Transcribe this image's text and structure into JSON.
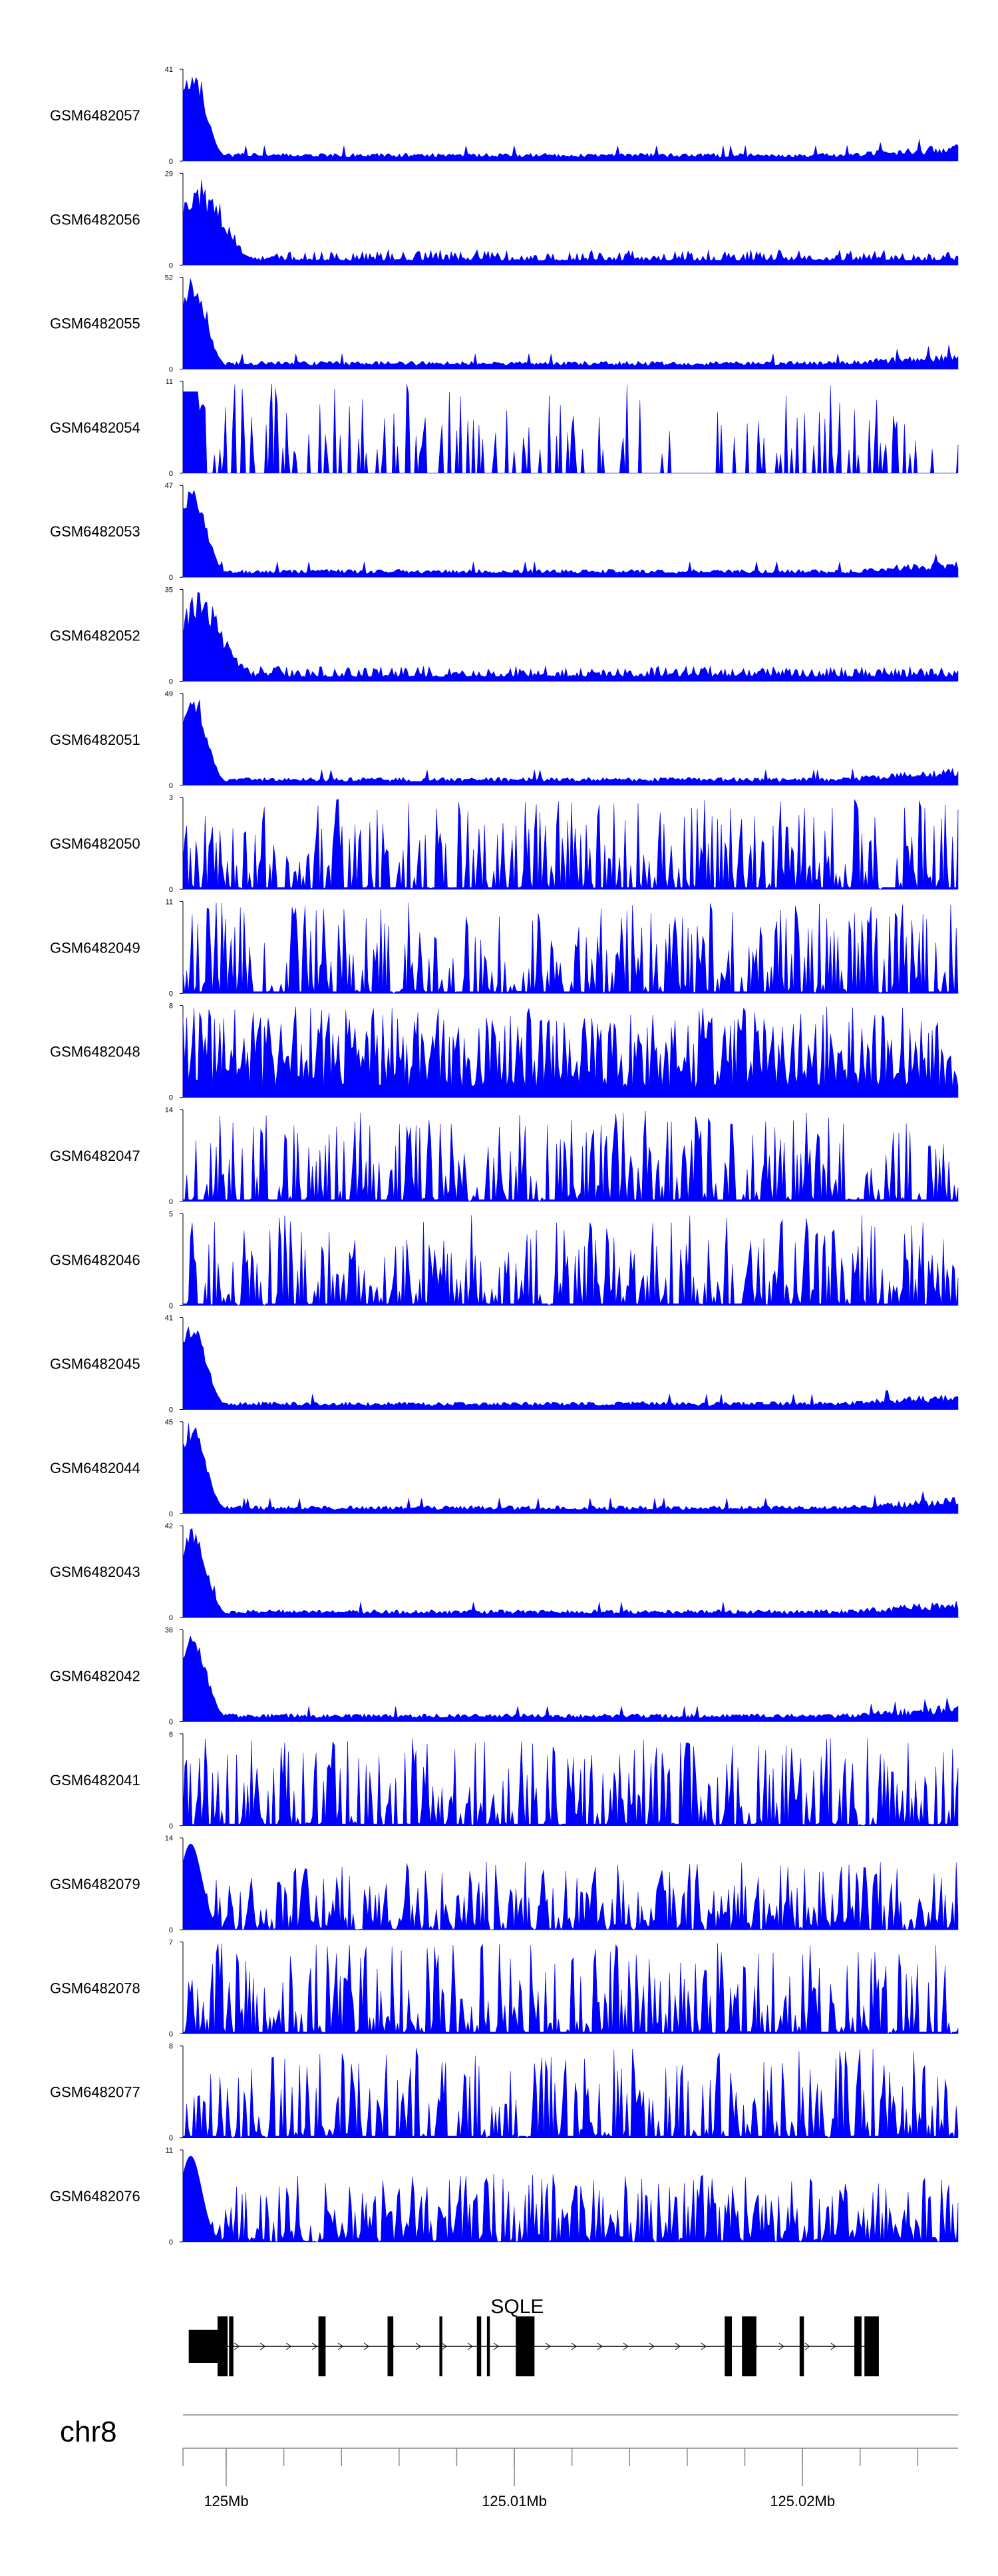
{
  "chart_data": {
    "type": "area",
    "fill_color": "#0000ff",
    "track_label_color": "#000000",
    "tracks": [
      {
        "name": "GSM6482057",
        "ymax": "41",
        "profile": "early",
        "seed": 11
      },
      {
        "name": "GSM6482056",
        "ymax": "29",
        "profile": "early-broad",
        "seed": 12
      },
      {
        "name": "GSM6482055",
        "ymax": "52",
        "profile": "early",
        "seed": 13
      },
      {
        "name": "GSM6482054",
        "ymax": "11",
        "profile": "sparse",
        "seed": 14
      },
      {
        "name": "GSM6482053",
        "ymax": "47",
        "profile": "early",
        "seed": 15
      },
      {
        "name": "GSM6482052",
        "ymax": "35",
        "profile": "early-broad",
        "seed": 16
      },
      {
        "name": "GSM6482051",
        "ymax": "49",
        "profile": "early",
        "seed": 17
      },
      {
        "name": "GSM6482050",
        "ymax": "3",
        "profile": "noise",
        "seed": 18
      },
      {
        "name": "GSM6482049",
        "ymax": "11",
        "profile": "noise",
        "seed": 19
      },
      {
        "name": "GSM6482048",
        "ymax": "8",
        "profile": "noise-dense",
        "seed": 20
      },
      {
        "name": "GSM6482047",
        "ymax": "14",
        "profile": "noise",
        "seed": 21
      },
      {
        "name": "GSM6482046",
        "ymax": "5",
        "profile": "noise",
        "seed": 22
      },
      {
        "name": "GSM6482045",
        "ymax": "41",
        "profile": "early",
        "seed": 23
      },
      {
        "name": "GSM6482044",
        "ymax": "45",
        "profile": "early",
        "seed": 24
      },
      {
        "name": "GSM6482043",
        "ymax": "42",
        "profile": "early",
        "seed": 25
      },
      {
        "name": "GSM6482042",
        "ymax": "36",
        "profile": "early",
        "seed": 26
      },
      {
        "name": "GSM6482041",
        "ymax": "6",
        "profile": "noise",
        "seed": 27
      },
      {
        "name": "GSM6482079",
        "ymax": "14",
        "profile": "mid",
        "seed": 28
      },
      {
        "name": "GSM6482078",
        "ymax": "7",
        "profile": "noise",
        "seed": 29
      },
      {
        "name": "GSM6482077",
        "ymax": "8",
        "profile": "noise",
        "seed": 30
      },
      {
        "name": "GSM6482076",
        "ymax": "11",
        "profile": "mid",
        "seed": 31
      }
    ],
    "track_ymin": "0",
    "gene": {
      "name": "SQLE",
      "strand": "+",
      "exons": [
        {
          "start": 124998700,
          "end": 124999700
        },
        {
          "start": 124999700,
          "end": 125000050
        },
        {
          "start": 125000100,
          "end": 125000250
        },
        {
          "start": 125003200,
          "end": 125003450
        },
        {
          "start": 125005600,
          "end": 125005800
        },
        {
          "start": 125007400,
          "end": 125007500
        },
        {
          "start": 125008700,
          "end": 125008850
        },
        {
          "start": 125009050,
          "end": 125009150
        },
        {
          "start": 125010050,
          "end": 125010700
        },
        {
          "start": 125017300,
          "end": 125017550
        },
        {
          "start": 125017900,
          "end": 125018400
        },
        {
          "start": 125019900,
          "end": 125020050
        },
        {
          "start": 125021800,
          "end": 125022050
        },
        {
          "start": 125022150,
          "end": 125022650
        }
      ]
    },
    "chromosome": "chr8",
    "x_range": [
      124998500,
      125025400
    ],
    "x_ticks": [
      125000000,
      125002000,
      125004000,
      125006000,
      125008000,
      125010000,
      125012000,
      125014000,
      125016000,
      125018000,
      125020000,
      125022000,
      125024000
    ],
    "x_tick_labels": [
      {
        "value": 125000000,
        "label": "125Mb"
      },
      {
        "value": 125010000,
        "label": "125.01Mb"
      },
      {
        "value": 125020000,
        "label": "125.02Mb"
      }
    ]
  }
}
